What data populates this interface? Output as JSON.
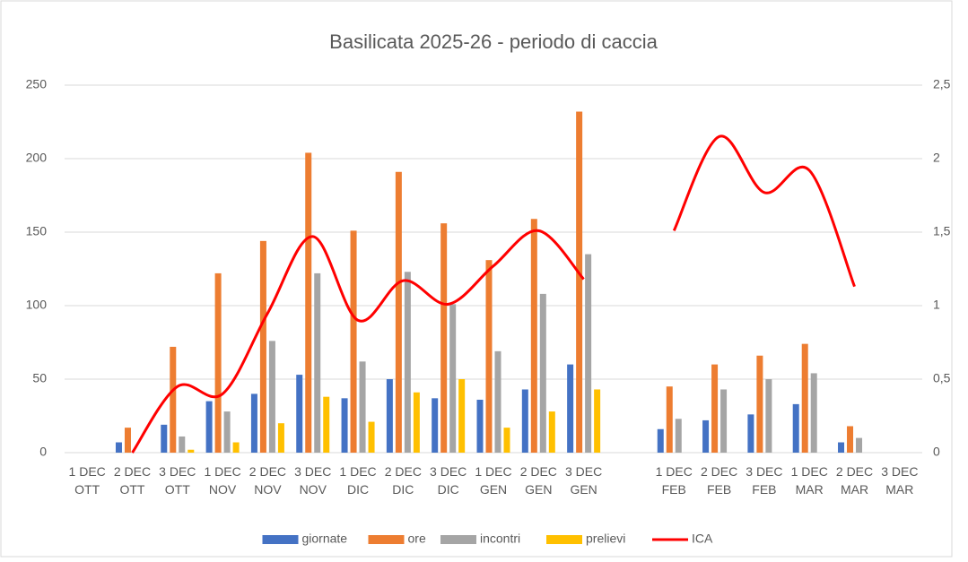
{
  "chart_data": {
    "type": "bar",
    "title": "Basilicata 2025-26 - periodo di caccia",
    "categories": [
      "1 DEC OTT",
      "2 DEC OTT",
      "3 DEC OTT",
      "1 DEC NOV",
      "2 DEC NOV",
      "3 DEC NOV",
      "1 DEC DIC",
      "2 DEC DIC",
      "3 DEC DIC",
      "1 DEC GEN",
      "2 DEC GEN",
      "3 DEC GEN",
      null,
      "1 DEC FEB",
      "2 DEC FEB",
      "3 DEC FEB",
      "1 DEC MAR",
      "2 DEC MAR",
      "3 DEC MAR"
    ],
    "series": [
      {
        "name": "giornate",
        "color": "#4472c4",
        "values": [
          null,
          7,
          19,
          35,
          40,
          53,
          37,
          50,
          37,
          36,
          43,
          60,
          null,
          16,
          22,
          26,
          33,
          7,
          null
        ]
      },
      {
        "name": "ore",
        "color": "#ed7d31",
        "values": [
          null,
          17,
          72,
          122,
          144,
          204,
          151,
          191,
          156,
          131,
          159,
          232,
          null,
          45,
          60,
          66,
          74,
          18,
          null
        ]
      },
      {
        "name": "incontri",
        "color": "#a5a5a5",
        "values": [
          null,
          null,
          11,
          28,
          76,
          122,
          62,
          123,
          101,
          69,
          108,
          135,
          null,
          23,
          43,
          50,
          54,
          10,
          null
        ]
      },
      {
        "name": "prelievi",
        "color": "#ffc000",
        "values": [
          null,
          null,
          2,
          7,
          20,
          38,
          21,
          41,
          50,
          17,
          28,
          43,
          null,
          null,
          null,
          null,
          null,
          null,
          null
        ]
      },
      {
        "name": "ICA",
        "color": "#ff0000",
        "type": "line",
        "axis": "y2",
        "values": [
          null,
          0,
          0.45,
          0.4,
          0.95,
          1.47,
          0.9,
          1.17,
          1.01,
          1.27,
          1.51,
          1.18,
          null,
          1.51,
          2.15,
          1.77,
          1.92,
          1.13,
          null
        ]
      }
    ],
    "ylim": [
      0,
      250
    ],
    "yticks": [
      0,
      50,
      100,
      150,
      200,
      250
    ],
    "y2lim": [
      0,
      2.5
    ],
    "y2ticks": [
      0,
      {
        "value": 0.5,
        "label": "0,5"
      },
      1,
      {
        "value": 1.5,
        "label": "1,5"
      },
      2,
      {
        "value": 2.5,
        "label": "2,5"
      }
    ],
    "grid": true,
    "legend": "bottom"
  }
}
